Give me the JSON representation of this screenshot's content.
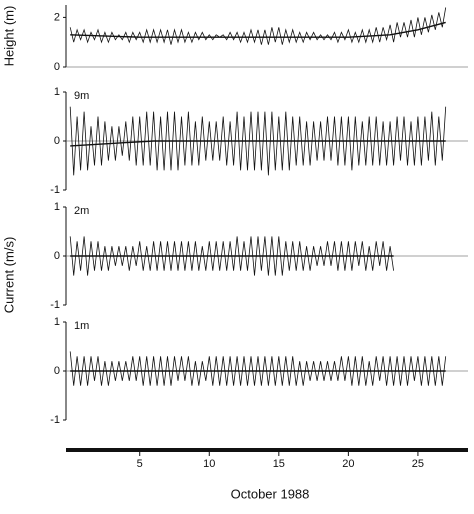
{
  "chart_data": [
    {
      "type": "line",
      "ylabel": "Height (m)",
      "ylim": [
        0,
        2.5
      ],
      "yticks": [
        0,
        2
      ],
      "xlim": [
        -0.3,
        28.6
      ],
      "zero_line": true,
      "x": [
        0,
        0.25,
        0.5,
        0.75,
        1,
        1.25,
        1.5,
        1.75,
        2,
        2.25,
        2.5,
        2.75,
        3,
        3.25,
        3.5,
        3.75,
        4,
        4.25,
        4.5,
        4.75,
        5,
        5.25,
        5.5,
        5.75,
        6,
        6.25,
        6.5,
        6.75,
        7,
        7.25,
        7.5,
        7.75,
        8,
        8.25,
        8.5,
        8.75,
        9,
        9.25,
        9.5,
        9.75,
        10,
        10.25,
        10.5,
        10.75,
        11,
        11.25,
        11.5,
        11.75,
        12,
        12.25,
        12.5,
        12.75,
        13,
        13.25,
        13.5,
        13.75,
        14,
        14.25,
        14.5,
        14.75,
        15,
        15.25,
        15.5,
        15.75,
        16,
        16.25,
        16.5,
        16.75,
        17,
        17.25,
        17.5,
        17.75,
        18,
        18.25,
        18.5,
        18.75,
        19,
        19.25,
        19.5,
        19.75,
        20,
        20.25,
        20.5,
        20.75,
        21,
        21.25,
        21.5,
        21.75,
        22,
        22.25,
        22.5,
        22.75,
        23,
        23.25,
        23.5,
        23.75,
        24,
        24.25,
        24.5,
        24.75,
        25,
        25.25,
        25.5,
        25.75,
        26,
        26.25,
        26.5,
        26.75,
        27
      ],
      "series": [
        {
          "color": "#111111",
          "values": [
            1.6,
            1.0,
            1.5,
            1.1,
            1.5,
            1.0,
            1.4,
            1.1,
            1.5,
            1.0,
            1.4,
            1.0,
            1.4,
            1.1,
            1.3,
            1.1,
            1.4,
            1.0,
            1.4,
            1.1,
            1.4,
            1.0,
            1.5,
            1.0,
            1.5,
            1.0,
            1.5,
            1.0,
            1.5,
            0.9,
            1.5,
            1.0,
            1.5,
            1.0,
            1.4,
            1.0,
            1.4,
            1.1,
            1.4,
            1.1,
            1.3,
            1.1,
            1.3,
            1.2,
            1.3,
            1.1,
            1.4,
            1.1,
            1.4,
            1.0,
            1.4,
            1.0,
            1.5,
            1.0,
            1.5,
            0.9,
            1.5,
            0.9,
            1.6,
            1.0,
            1.6,
            0.9,
            1.5,
            1.0,
            1.5,
            1.0,
            1.4,
            1.0,
            1.4,
            1.1,
            1.4,
            1.1,
            1.3,
            1.1,
            1.3,
            1.1,
            1.4,
            1.0,
            1.4,
            1.1,
            1.5,
            1.0,
            1.4,
            1.0,
            1.5,
            1.0,
            1.5,
            1.0,
            1.6,
            1.0,
            1.6,
            1.1,
            1.7,
            1.0,
            1.8,
            1.2,
            1.8,
            1.2,
            1.9,
            1.2,
            2.0,
            1.3,
            2.0,
            1.4,
            2.1,
            1.5,
            2.2,
            1.6,
            2.4
          ]
        },
        {
          "color": "#111111",
          "x": [
            0,
            5,
            10,
            15,
            20,
            23,
            25,
            27
          ],
          "values": [
            1.3,
            1.2,
            1.2,
            1.2,
            1.2,
            1.3,
            1.5,
            1.8
          ]
        }
      ]
    },
    {
      "type": "line",
      "label": "9m",
      "ylim": [
        -1,
        1
      ],
      "yticks": [
        -1,
        0,
        1
      ],
      "xlim": [
        -0.3,
        28.6
      ],
      "zero_line": true,
      "x": [
        0,
        0.25,
        0.5,
        0.75,
        1,
        1.25,
        1.5,
        1.75,
        2,
        2.25,
        2.5,
        2.75,
        3,
        3.25,
        3.5,
        3.75,
        4,
        4.25,
        4.5,
        4.75,
        5,
        5.25,
        5.5,
        5.75,
        6,
        6.25,
        6.5,
        6.75,
        7,
        7.25,
        7.5,
        7.75,
        8,
        8.25,
        8.5,
        8.75,
        9,
        9.25,
        9.5,
        9.75,
        10,
        10.25,
        10.5,
        10.75,
        11,
        11.25,
        11.5,
        11.75,
        12,
        12.25,
        12.5,
        12.75,
        13,
        13.25,
        13.5,
        13.75,
        14,
        14.25,
        14.5,
        14.75,
        15,
        15.25,
        15.5,
        15.75,
        16,
        16.25,
        16.5,
        16.75,
        17,
        17.25,
        17.5,
        17.75,
        18,
        18.25,
        18.5,
        18.75,
        19,
        19.25,
        19.5,
        19.75,
        20,
        20.25,
        20.5,
        20.75,
        21,
        21.25,
        21.5,
        21.75,
        22,
        22.25,
        22.5,
        22.75,
        23,
        23.25,
        23.5,
        23.75,
        24,
        24.25,
        24.5,
        24.75,
        25,
        25.25,
        25.5,
        25.75,
        26,
        26.25,
        26.5,
        26.75,
        27
      ],
      "series": [
        {
          "color": "#111111",
          "values": [
            0.7,
            -0.7,
            0.5,
            -0.6,
            0.6,
            -0.6,
            0.3,
            -0.5,
            0.5,
            -0.5,
            0.4,
            -0.4,
            0.3,
            -0.4,
            0.3,
            -0.3,
            0.4,
            -0.4,
            0.5,
            -0.5,
            0.5,
            -0.5,
            0.6,
            -0.5,
            0.6,
            -0.6,
            0.5,
            -0.6,
            0.6,
            -0.6,
            0.6,
            -0.6,
            0.5,
            -0.5,
            0.6,
            -0.5,
            0.4,
            -0.5,
            0.5,
            -0.4,
            0.4,
            -0.4,
            0.4,
            -0.4,
            0.5,
            -0.5,
            0.4,
            -0.5,
            0.6,
            -0.6,
            0.5,
            -0.6,
            0.6,
            -0.6,
            0.6,
            -0.6,
            0.6,
            -0.7,
            0.6,
            -0.6,
            0.5,
            -0.6,
            0.6,
            -0.6,
            0.5,
            -0.5,
            0.5,
            -0.5,
            0.4,
            -0.5,
            0.4,
            -0.4,
            0.4,
            -0.4,
            0.5,
            -0.4,
            0.5,
            -0.5,
            0.5,
            -0.5,
            0.5,
            -0.6,
            0.5,
            -0.5,
            0.4,
            -0.5,
            0.5,
            -0.5,
            0.5,
            -0.5,
            0.4,
            -0.5,
            0.4,
            -0.5,
            0.5,
            -0.4,
            0.5,
            -0.5,
            0.4,
            -0.5,
            0.5,
            -0.5,
            0.5,
            -0.4,
            0.6,
            -0.5,
            0.5,
            -0.4,
            0.7
          ]
        },
        {
          "color": "#111111",
          "x": [
            0,
            3,
            6,
            27
          ],
          "values": [
            -0.1,
            -0.05,
            0,
            0
          ]
        }
      ]
    },
    {
      "type": "line",
      "label": "2m",
      "ylabel": "Current (m/s)",
      "ylim": [
        -1,
        1
      ],
      "yticks": [
        -1,
        0,
        1
      ],
      "xlim": [
        -0.3,
        28.6
      ],
      "zero_line": true,
      "x": [
        0,
        0.25,
        0.5,
        0.75,
        1,
        1.25,
        1.5,
        1.75,
        2,
        2.25,
        2.5,
        2.75,
        3,
        3.25,
        3.5,
        3.75,
        4,
        4.25,
        4.5,
        4.75,
        5,
        5.25,
        5.5,
        5.75,
        6,
        6.25,
        6.5,
        6.75,
        7,
        7.25,
        7.5,
        7.75,
        8,
        8.25,
        8.5,
        8.75,
        9,
        9.25,
        9.5,
        9.75,
        10,
        10.25,
        10.5,
        10.75,
        11,
        11.25,
        11.5,
        11.75,
        12,
        12.25,
        12.5,
        12.75,
        13,
        13.25,
        13.5,
        13.75,
        14,
        14.25,
        14.5,
        14.75,
        15,
        15.25,
        15.5,
        15.75,
        16,
        16.25,
        16.5,
        16.75,
        17,
        17.25,
        17.5,
        17.75,
        18,
        18.25,
        18.5,
        18.75,
        19,
        19.25,
        19.5,
        19.75,
        20,
        20.25,
        20.5,
        20.75,
        21,
        21.25,
        21.5,
        21.75,
        22,
        22.25,
        22.5,
        22.75,
        23,
        23.25,
        23.5,
        23.75,
        24,
        24.25,
        24.5,
        24.75,
        25,
        25.25,
        25.5,
        25.75,
        26,
        26.25,
        26.5,
        26.75,
        27
      ],
      "series": [
        {
          "color": "#111111",
          "values": [
            0.4,
            -0.4,
            0.3,
            -0.3,
            0.4,
            -0.4,
            0.3,
            -0.3,
            0.3,
            -0.3,
            0.2,
            -0.3,
            0.2,
            -0.2,
            0.2,
            -0.2,
            0.2,
            -0.3,
            0.2,
            -0.2,
            0.3,
            -0.3,
            0.2,
            -0.3,
            0.3,
            -0.3,
            0.3,
            -0.3,
            0.3,
            -0.3,
            0.3,
            -0.3,
            0.3,
            -0.3,
            0.3,
            -0.3,
            0.3,
            -0.3,
            0.2,
            -0.3,
            0.3,
            -0.3,
            0.3,
            -0.3,
            0.3,
            -0.3,
            0.3,
            -0.3,
            0.4,
            -0.3,
            0.3,
            -0.3,
            0.4,
            -0.4,
            0.4,
            -0.3,
            0.4,
            -0.4,
            0.4,
            -0.4,
            0.4,
            -0.4,
            0.3,
            -0.3,
            0.3,
            -0.3,
            0.3,
            -0.3,
            0.2,
            -0.3,
            0.2,
            -0.2,
            0.2,
            -0.2,
            0.3,
            -0.2,
            0.3,
            -0.3,
            0.3,
            -0.3,
            0.3,
            -0.3,
            0.3,
            -0.2,
            0.3,
            -0.3,
            0.2,
            -0.3,
            0.3,
            -0.2,
            0.3,
            -0.3,
            0.2,
            -0.3,
            null,
            null,
            null,
            null,
            null,
            null,
            null,
            null,
            null,
            null,
            null,
            null,
            null,
            null,
            null
          ]
        },
        {
          "color": "#111111",
          "x": [
            0,
            23.25
          ],
          "values": [
            0,
            0
          ]
        }
      ]
    },
    {
      "type": "line",
      "label": "1m",
      "ylim": [
        -1,
        1
      ],
      "yticks": [
        -1,
        0,
        1
      ],
      "xlim": [
        -0.3,
        28.6
      ],
      "zero_line": true,
      "xticks": [
        5,
        10,
        15,
        20,
        25
      ],
      "xlabel": "October 1988",
      "x": [
        0,
        0.25,
        0.5,
        0.75,
        1,
        1.25,
        1.5,
        1.75,
        2,
        2.25,
        2.5,
        2.75,
        3,
        3.25,
        3.5,
        3.75,
        4,
        4.25,
        4.5,
        4.75,
        5,
        5.25,
        5.5,
        5.75,
        6,
        6.25,
        6.5,
        6.75,
        7,
        7.25,
        7.5,
        7.75,
        8,
        8.25,
        8.5,
        8.75,
        9,
        9.25,
        9.5,
        9.75,
        10,
        10.25,
        10.5,
        10.75,
        11,
        11.25,
        11.5,
        11.75,
        12,
        12.25,
        12.5,
        12.75,
        13,
        13.25,
        13.5,
        13.75,
        14,
        14.25,
        14.5,
        14.75,
        15,
        15.25,
        15.5,
        15.75,
        16,
        16.25,
        16.5,
        16.75,
        17,
        17.25,
        17.5,
        17.75,
        18,
        18.25,
        18.5,
        18.75,
        19,
        19.25,
        19.5,
        19.75,
        20,
        20.25,
        20.5,
        20.75,
        21,
        21.25,
        21.5,
        21.75,
        22,
        22.25,
        22.5,
        22.75,
        23,
        23.25,
        23.5,
        23.75,
        24,
        24.25,
        24.5,
        24.75,
        25,
        25.25,
        25.5,
        25.75,
        26,
        26.25,
        26.5,
        26.75,
        27
      ],
      "series": [
        {
          "color": "#111111",
          "values": [
            0.4,
            -0.3,
            0.3,
            -0.3,
            0.3,
            -0.3,
            0.3,
            -0.2,
            0.3,
            -0.3,
            0.2,
            -0.3,
            0.2,
            -0.2,
            0.2,
            -0.2,
            0.2,
            -0.2,
            0.3,
            -0.2,
            0.3,
            -0.3,
            0.3,
            -0.3,
            0.3,
            -0.3,
            0.3,
            -0.3,
            0.3,
            -0.3,
            0.3,
            -0.2,
            0.3,
            -0.2,
            0.3,
            -0.3,
            0.2,
            -0.3,
            0.2,
            -0.2,
            0.3,
            -0.3,
            0.3,
            -0.3,
            0.3,
            -0.3,
            0.3,
            -0.3,
            0.3,
            -0.3,
            0.3,
            -0.3,
            0.3,
            -0.3,
            0.3,
            -0.3,
            0.3,
            -0.3,
            0.3,
            -0.3,
            0.3,
            -0.3,
            0.3,
            -0.3,
            0.3,
            -0.3,
            0.2,
            -0.3,
            0.2,
            -0.2,
            0.2,
            -0.2,
            0.2,
            -0.2,
            0.2,
            -0.2,
            0.2,
            -0.2,
            0.3,
            -0.2,
            0.3,
            -0.3,
            0.3,
            -0.3,
            0.3,
            -0.3,
            0.2,
            -0.3,
            0.3,
            -0.2,
            0.3,
            -0.3,
            0.3,
            -0.3,
            0.3,
            -0.3,
            0.3,
            -0.3,
            0.3,
            -0.2,
            0.3,
            -0.3,
            0.3,
            -0.3,
            0.3,
            -0.3,
            0.3,
            -0.3,
            0.3
          ]
        },
        {
          "color": "#111111",
          "x": [
            0,
            27
          ],
          "values": [
            0,
            0
          ]
        }
      ]
    }
  ]
}
